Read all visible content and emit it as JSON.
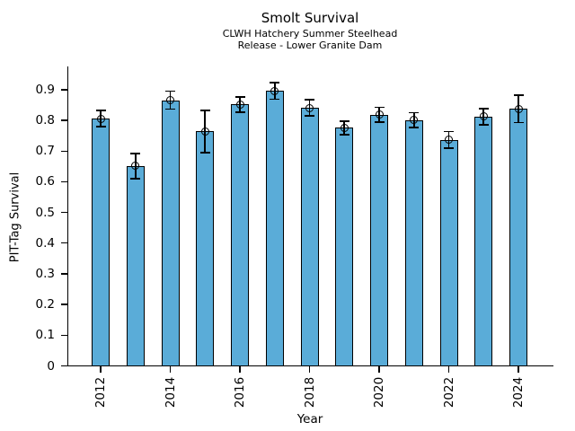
{
  "chart_data": {
    "type": "bar",
    "title": "Smolt Survival",
    "subtitle_line1": "CLWH Hatchery Summer Steelhead",
    "subtitle_line2": "Release - Lower Granite Dam",
    "xlabel": "Year",
    "ylabel": "PIT-Tag Survival",
    "categories": [
      "2012",
      "2013",
      "2014",
      "2015",
      "2016",
      "2017",
      "2018",
      "2019",
      "2020",
      "2021",
      "2022",
      "2023",
      "2024"
    ],
    "values": [
      0.806,
      0.652,
      0.866,
      0.764,
      0.852,
      0.896,
      0.841,
      0.776,
      0.819,
      0.801,
      0.737,
      0.812,
      0.838
    ],
    "error_bars": [
      0.027,
      0.041,
      0.029,
      0.069,
      0.025,
      0.027,
      0.027,
      0.022,
      0.024,
      0.024,
      0.027,
      0.026,
      0.045
    ],
    "ylim": [
      0,
      0.97
    ],
    "ytick_values": [
      0,
      0.1,
      0.2,
      0.3,
      0.4,
      0.5,
      0.6,
      0.7,
      0.8,
      0.9
    ],
    "ytick_labels": [
      "0",
      "0.1",
      "0.2",
      "0.3",
      "0.4",
      "0.5",
      "0.6",
      "0.7",
      "0.8",
      "0.9"
    ],
    "xtick_labels": [
      "2012",
      "2014",
      "2016",
      "2018",
      "2020",
      "2022",
      "2024"
    ],
    "xtick_rotation_deg": 90,
    "grid": false,
    "legend": "none",
    "marker": "open-circle",
    "bar_color": "#5AACD8",
    "bar_edge_color": "#000000",
    "error_color": "#000000",
    "axis_color": "#000000"
  }
}
